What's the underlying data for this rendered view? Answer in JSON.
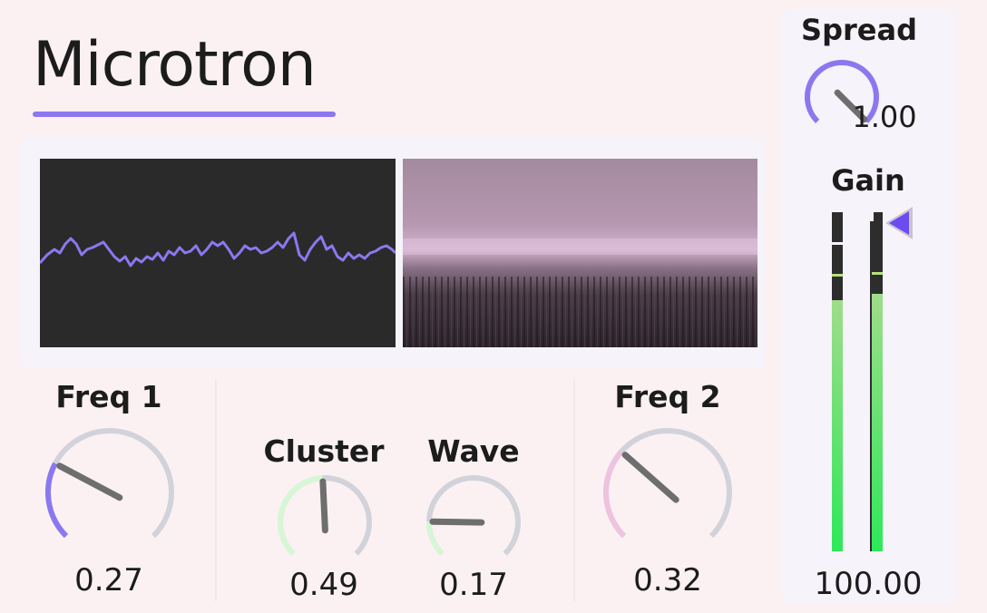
{
  "app": {
    "title": "Microtron"
  },
  "knobs": {
    "freq1": {
      "label": "Freq 1",
      "value_text": "0.27",
      "value": 0.27,
      "color": "#8b78f0"
    },
    "cluster": {
      "label": "Cluster",
      "value_text": "0.49",
      "value": 0.49,
      "color": "#d6f7d6"
    },
    "wave": {
      "label": "Wave",
      "value_text": "0.17",
      "value": 0.17,
      "color": "#d6f7d6"
    },
    "freq2": {
      "label": "Freq 2",
      "value_text": "0.32",
      "value": 0.32,
      "color": "#eec3df"
    },
    "spread": {
      "label": "Spread",
      "value_text": "1.00",
      "value": 1.0,
      "color": "#8b78f0"
    }
  },
  "gain": {
    "label": "Gain",
    "value_text": "100.00",
    "meter_left_level": 0.74,
    "meter_right_level": 0.76,
    "pointer_color": "#6a4cf0"
  },
  "colors": {
    "accent": "#8b78f0",
    "background": "#fbf1f2",
    "panel": "#f6f3fa",
    "track": "#d2d2da",
    "pointer": "#6e6e6e"
  }
}
